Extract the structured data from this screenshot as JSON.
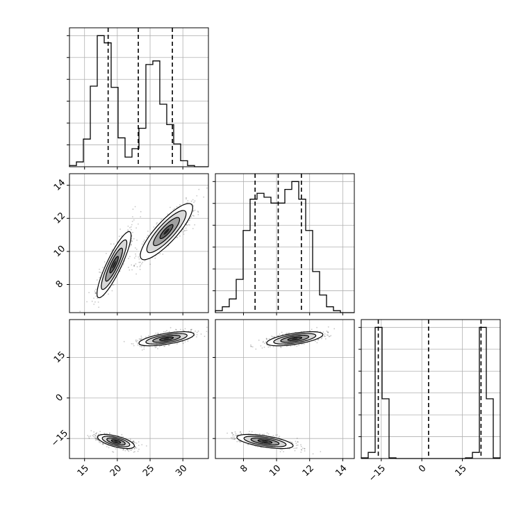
{
  "colors": {
    "background": "#ffffff",
    "axes": "#000000",
    "grid": "#b0b0b0",
    "points": "#000000",
    "contour_fill_levels": [
      "#ffffff",
      "#d8d8d8",
      "#a0a0a0",
      "#606060",
      "#202020"
    ],
    "quantile_line": "#000000"
  },
  "chart_data": {
    "type": "corner",
    "variables": 3,
    "grid": true,
    "axis_ranges": [
      [
        12.7,
        33.9
      ],
      [
        6.3,
        14.7
      ],
      [
        -22.4,
        29.0
      ]
    ],
    "tick_labels": [
      [
        "15",
        "20",
        "25",
        "30"
      ],
      [
        "8",
        "10",
        "12",
        "14"
      ],
      [
        "−15",
        "0",
        "15"
      ]
    ],
    "tick_values": [
      [
        15,
        20,
        25,
        30
      ],
      [
        8,
        10,
        12,
        14
      ],
      [
        -15,
        0,
        15
      ]
    ],
    "histograms": [
      {
        "variable": 0,
        "bin_edges": [
          12.7,
          13.76,
          14.82,
          15.88,
          16.94,
          18.0,
          19.06,
          20.12,
          21.18,
          22.24,
          23.3,
          24.36,
          25.42,
          26.48,
          27.54,
          28.6,
          29.66,
          30.72,
          31.78,
          32.84,
          33.9
        ],
        "counts": [
          0.01,
          0.04,
          0.23,
          0.67,
          1.09,
          1.03,
          0.66,
          0.24,
          0.08,
          0.15,
          0.32,
          0.85,
          0.88,
          0.52,
          0.35,
          0.19,
          0.05,
          0.01,
          0.0,
          0.0
        ],
        "quantiles": [
          18.6,
          23.2,
          28.4
        ]
      },
      {
        "variable": 1,
        "bin_edges": [
          6.3,
          6.72,
          7.14,
          7.56,
          7.98,
          8.4,
          8.82,
          9.24,
          9.66,
          10.08,
          10.5,
          10.92,
          11.34,
          11.76,
          12.18,
          12.6,
          13.02,
          13.44,
          13.86,
          14.28,
          14.7
        ],
        "counts": [
          0.01,
          0.03,
          0.07,
          0.17,
          0.42,
          0.58,
          0.61,
          0.59,
          0.56,
          0.56,
          0.63,
          0.67,
          0.58,
          0.42,
          0.21,
          0.09,
          0.03,
          0.01,
          0.0,
          0.0
        ],
        "quantiles": [
          8.7,
          10.1,
          11.5
        ]
      },
      {
        "variable": 2,
        "bin_edges": [
          -22.4,
          -19.83,
          -17.26,
          -14.69,
          -12.12,
          -9.55,
          -6.98,
          -4.41,
          -1.84,
          0.73,
          3.3,
          5.87,
          8.44,
          11.01,
          13.58,
          16.15,
          18.72,
          21.29,
          23.86,
          26.43,
          29.0
        ],
        "counts": [
          0.01,
          0.09,
          1.93,
          0.88,
          0.01,
          0.0,
          0.0,
          0.0,
          0.0,
          0.0,
          0.0,
          0.0,
          0.0,
          0.0,
          0.0,
          0.01,
          0.09,
          1.93,
          0.88,
          0.01
        ],
        "quantiles": [
          -16.1,
          2.5,
          21.9
        ]
      }
    ],
    "scatter_2d": [
      {
        "x_variable": 0,
        "y_variable": 1,
        "modes": [
          {
            "center": [
              19.5,
              9.2
            ],
            "sigma": [
              1.3,
              1.0
            ],
            "correlation": 0.88,
            "weight": 1
          },
          {
            "center": [
              27.5,
              11.2
            ],
            "sigma": [
              2.0,
              0.85
            ],
            "correlation": 0.85,
            "weight": 1
          }
        ]
      },
      {
        "x_variable": 0,
        "y_variable": 2,
        "modes": [
          {
            "center": [
              19.8,
              -16.1
            ],
            "sigma": [
              1.4,
              1.3
            ],
            "correlation": -0.62,
            "weight": 1
          },
          {
            "center": [
              27.5,
              21.9
            ],
            "sigma": [
              2.1,
              1.3
            ],
            "correlation": 0.62,
            "weight": 1
          }
        ]
      },
      {
        "x_variable": 1,
        "y_variable": 2,
        "modes": [
          {
            "center": [
              9.3,
              -16.1
            ],
            "sigma": [
              0.85,
              1.3
            ],
            "correlation": -0.6,
            "weight": 1
          },
          {
            "center": [
              11.1,
              21.9
            ],
            "sigma": [
              0.85,
              1.3
            ],
            "correlation": 0.6,
            "weight": 1
          }
        ]
      }
    ],
    "contour_levels_sigma": [
      2.0,
      1.5,
      1.0,
      0.5
    ]
  }
}
